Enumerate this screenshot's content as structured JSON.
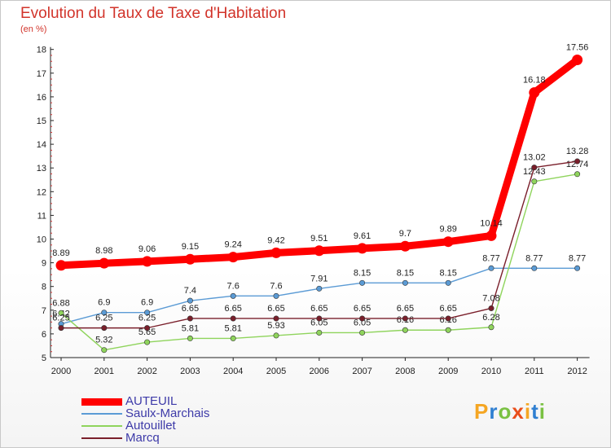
{
  "title": "Evolution du Taux de Taxe d'Habitation",
  "subtitle": "(en %)",
  "brand": {
    "text": "Proxiti",
    "letter_colors": [
      "#f5a623",
      "#2f7fd1",
      "#7ac143",
      "#e94e1b",
      "#f5a623",
      "#2f7fd1",
      "#7ac143"
    ]
  },
  "chart_data": {
    "type": "line",
    "title": "Evolution du Taux de Taxe d'Habitation",
    "ylabel": "(en %)",
    "xlabel": "",
    "categories": [
      "2000",
      "2001",
      "2002",
      "2003",
      "2004",
      "2005",
      "2006",
      "2007",
      "2008",
      "2009",
      "2010",
      "2011",
      "2012"
    ],
    "ylim": [
      5,
      18
    ],
    "yticks": [
      "5",
      "6",
      "7",
      "8",
      "9",
      "10",
      "11",
      "12",
      "13",
      "14",
      "15",
      "16",
      "17",
      "18"
    ],
    "grid": false,
    "legend_position": "bottom-left",
    "series": [
      {
        "name": "Saulx-Marchais",
        "color": "#5b9bd5",
        "values": [
          6.42,
          6.9,
          6.9,
          7.4,
          7.6,
          7.6,
          7.91,
          8.15,
          8.15,
          8.15,
          8.77,
          8.77,
          8.77
        ],
        "labels": [
          "6.42",
          "6.9",
          "6.9",
          "7.4",
          "7.6",
          "7.6",
          "7.91",
          "8.15",
          "8.15",
          "8.15",
          "8.77",
          "8.77",
          "8.77"
        ]
      },
      {
        "name": "Autouillet",
        "color": "#8fd45c",
        "values": [
          6.88,
          5.32,
          5.65,
          5.81,
          5.81,
          5.93,
          6.05,
          6.05,
          6.16,
          6.16,
          6.28,
          12.43,
          12.74
        ],
        "labels": [
          "6.88",
          "5.32",
          "5.65",
          "5.81",
          "5.81",
          "5.93",
          "6.05",
          "6.05",
          "6.16",
          "6.16",
          "6.28",
          "12.43",
          "12.74"
        ]
      },
      {
        "name": "Marcq",
        "color": "#7a1f2b",
        "values": [
          6.25,
          6.25,
          6.25,
          6.65,
          6.65,
          6.65,
          6.65,
          6.65,
          6.65,
          6.65,
          7.08,
          13.02,
          13.28
        ],
        "labels": [
          "6.25",
          "6.25",
          "6.25",
          "6.65",
          "6.65",
          "6.65",
          "6.65",
          "6.65",
          "6.65",
          "6.65",
          "7.08",
          "13.02",
          "13.28"
        ]
      },
      {
        "name": "AUTEUIL",
        "color": "#ff0000",
        "values": [
          8.89,
          8.98,
          9.06,
          9.15,
          9.24,
          9.42,
          9.51,
          9.61,
          9.7,
          9.89,
          10.14,
          16.18,
          17.56
        ],
        "labels": [
          "8.89",
          "8.98",
          "9.06",
          "9.15",
          "9.24",
          "9.42",
          "9.51",
          "9.61",
          "9.7",
          "9.89",
          "10.14",
          "16.18",
          "17.56"
        ]
      }
    ],
    "legend": [
      {
        "name": "AUTEUIL",
        "color": "#ff0000"
      },
      {
        "name": "Saulx-Marchais",
        "color": "#5b9bd5"
      },
      {
        "name": "Autouillet",
        "color": "#8fd45c"
      },
      {
        "name": "Marcq",
        "color": "#7a1f2b"
      }
    ]
  }
}
